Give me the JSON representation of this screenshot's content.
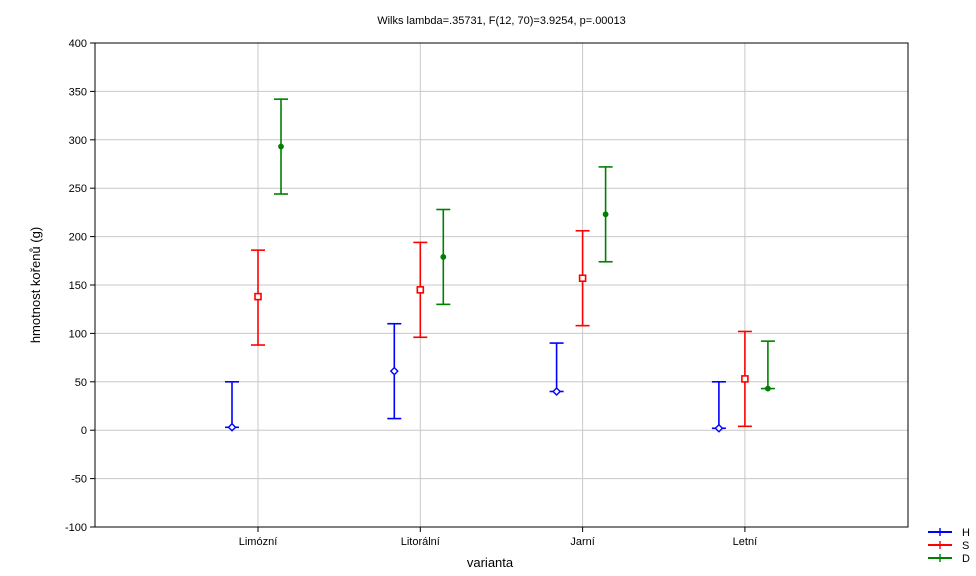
{
  "chart_data": {
    "type": "errorbar",
    "title": "Wilks lambda=.35731, F(12, 70)=3.9254, p=.00013",
    "xlabel": "varianta",
    "ylabel": "hmotnost kořenů (g)",
    "categories": [
      "Limózní",
      "Litorální",
      "Jarní",
      "Letní"
    ],
    "ylim": [
      -100,
      400
    ],
    "yticks": [
      -100,
      -50,
      0,
      50,
      100,
      150,
      200,
      250,
      300,
      350,
      400
    ],
    "grid": true,
    "legend_position": "bottom-right",
    "series": [
      {
        "name": "H",
        "color": "#0000ff",
        "marker": "diamond",
        "points": [
          {
            "mean": 3,
            "low": 3,
            "high": 50
          },
          {
            "mean": 61,
            "low": 12,
            "high": 110
          },
          {
            "mean": 40,
            "low": 40,
            "high": 90
          },
          {
            "mean": 2,
            "low": 2,
            "high": 50
          }
        ]
      },
      {
        "name": "S",
        "color": "#ff0000",
        "marker": "square",
        "points": [
          {
            "mean": 138,
            "low": 88,
            "high": 186
          },
          {
            "mean": 145,
            "low": 96,
            "high": 194
          },
          {
            "mean": 157,
            "low": 108,
            "high": 206
          },
          {
            "mean": 53,
            "low": 4,
            "high": 102
          }
        ]
      },
      {
        "name": "D",
        "color": "#008000",
        "marker": "circle",
        "points": [
          {
            "mean": 293,
            "low": 244,
            "high": 342
          },
          {
            "mean": 179,
            "low": 130,
            "high": 228
          },
          {
            "mean": 223,
            "low": 174,
            "high": 272
          },
          {
            "mean": 43,
            "low": 43,
            "high": 92
          }
        ]
      }
    ]
  }
}
